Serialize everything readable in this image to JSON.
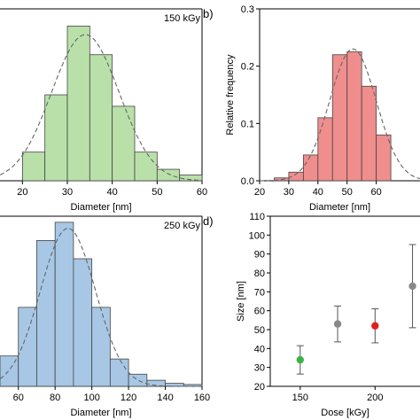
{
  "chart_data": [
    {
      "panel": "",
      "type": "bar",
      "annotation": "150 kGy",
      "xlabel": "Diameter [nm]",
      "ylabel": "",
      "xlim": [
        15,
        60
      ],
      "ylim": [
        0,
        0.3
      ],
      "xticks": [
        20,
        30,
        40,
        50,
        60
      ],
      "bin_width": 5,
      "bar_color": "#b9e0a9",
      "bins": [
        {
          "x0": 20,
          "value": 0.05
        },
        {
          "x0": 25,
          "value": 0.15
        },
        {
          "x0": 30,
          "value": 0.27
        },
        {
          "x0": 35,
          "value": 0.22
        },
        {
          "x0": 40,
          "value": 0.13
        },
        {
          "x0": 45,
          "value": 0.05
        },
        {
          "x0": 50,
          "value": 0.02
        },
        {
          "x0": 55,
          "value": 0.01
        }
      ],
      "fit": {
        "mean": 34,
        "sd": 7.5,
        "peak": 0.255
      }
    },
    {
      "panel": "b)",
      "type": "bar",
      "annotation": "",
      "xlabel": "Diameter [nm]",
      "ylabel": "Relative frequency",
      "xlim": [
        20,
        75
      ],
      "ylim": [
        0,
        0.3
      ],
      "xticks": [
        20,
        30,
        40,
        50,
        60
      ],
      "yticks": [
        0.0,
        0.1,
        0.2,
        0.3
      ],
      "ytick_labels": [
        "0.0",
        "0.1",
        "0.2",
        "0.3"
      ],
      "bin_width": 5,
      "bar_color": "#f08e8e",
      "bins": [
        {
          "x0": 25,
          "value": 0.005
        },
        {
          "x0": 30,
          "value": 0.015
        },
        {
          "x0": 35,
          "value": 0.045
        },
        {
          "x0": 40,
          "value": 0.11
        },
        {
          "x0": 45,
          "value": 0.22
        },
        {
          "x0": 50,
          "value": 0.225
        },
        {
          "x0": 55,
          "value": 0.165
        },
        {
          "x0": 60,
          "value": 0.08
        }
      ],
      "fit": {
        "mean": 52,
        "sd": 8,
        "peak": 0.23
      }
    },
    {
      "panel": "",
      "type": "bar",
      "annotation": "250 kGy",
      "xlabel": "Diameter [nm]",
      "ylabel": "",
      "xlim": [
        50,
        160
      ],
      "ylim": [
        0,
        0.28
      ],
      "xticks": [
        60,
        80,
        100,
        120,
        140,
        160
      ],
      "bin_width": 10,
      "bar_color": "#a7c7e5",
      "bins": [
        {
          "x0": 50,
          "value": 0.05
        },
        {
          "x0": 60,
          "value": 0.13
        },
        {
          "x0": 70,
          "value": 0.24
        },
        {
          "x0": 80,
          "value": 0.27
        },
        {
          "x0": 90,
          "value": 0.21
        },
        {
          "x0": 100,
          "value": 0.13
        },
        {
          "x0": 110,
          "value": 0.045
        },
        {
          "x0": 120,
          "value": 0.02
        },
        {
          "x0": 130,
          "value": 0.01
        },
        {
          "x0": 140,
          "value": 0.005
        },
        {
          "x0": 150,
          "value": 0.003
        }
      ],
      "fit": {
        "mean": 87,
        "sd": 15,
        "peak": 0.26
      }
    },
    {
      "panel": "d)",
      "type": "scatter",
      "xlabel": "Dose [kGy]",
      "ylabel": "Size [nm]",
      "xlim": [
        130,
        230
      ],
      "ylim": [
        20,
        110
      ],
      "xticks": [
        150,
        200
      ],
      "yticks": [
        20,
        30,
        40,
        50,
        60,
        70,
        80,
        90,
        100,
        110
      ],
      "points": [
        {
          "x": 150,
          "y": 34,
          "err": 7.5,
          "color": "#3bb54a"
        },
        {
          "x": 175,
          "y": 53,
          "err": 9.5,
          "color": "#888888"
        },
        {
          "x": 200,
          "y": 52,
          "err": 9,
          "color": "#e02020"
        },
        {
          "x": 225,
          "y": 73,
          "err": 22,
          "color": "#888888"
        }
      ]
    }
  ]
}
